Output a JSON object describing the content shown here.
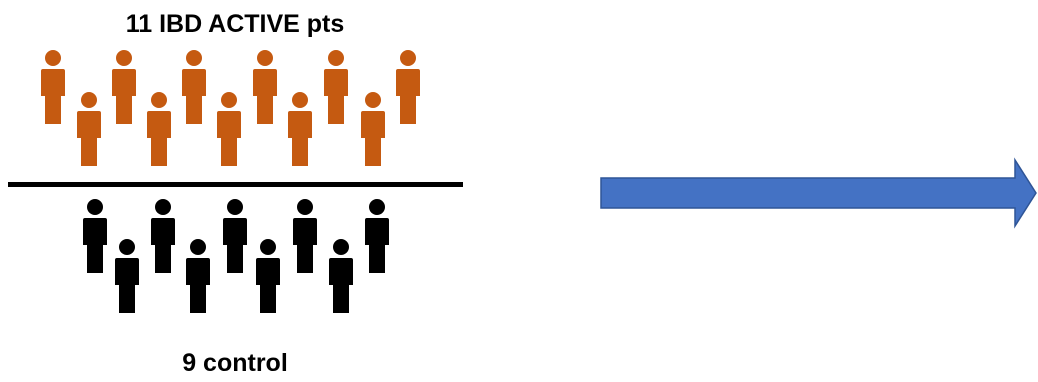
{
  "top_group": {
    "label": "11 IBD ACTIVE pts",
    "count": 11,
    "color": "#C55A11"
  },
  "bottom_group": {
    "label": "9 control",
    "count": 9,
    "color": "#000000"
  },
  "arrow": {
    "fill": "#4472C4",
    "stroke": "#2F5597",
    "direction": "right"
  }
}
